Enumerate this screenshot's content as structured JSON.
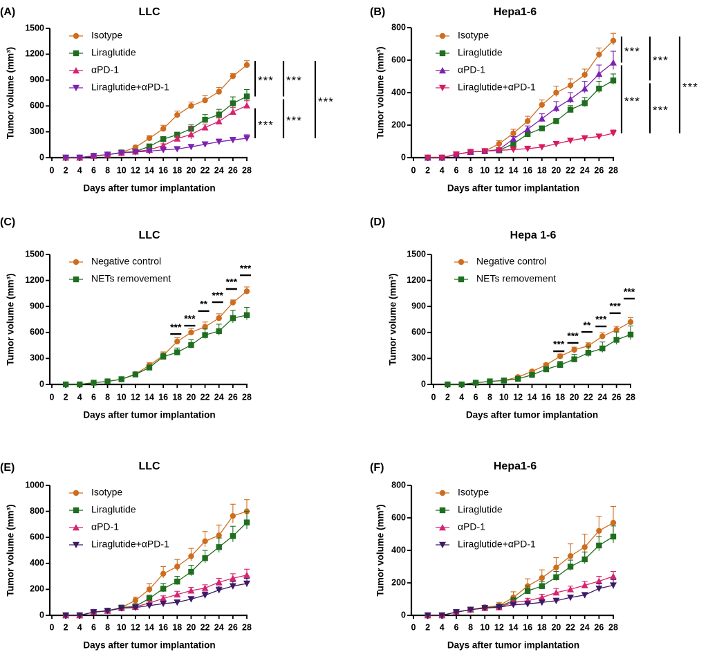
{
  "chart_data": [
    {
      "panel": "(A)",
      "title": "LLC",
      "type": "line",
      "xlabel": "Days after tumor implantation",
      "ylabel": "Tumor volume (mm³)",
      "xlim": [
        0,
        28
      ],
      "xticks": [
        0,
        2,
        4,
        6,
        8,
        10,
        12,
        14,
        16,
        18,
        20,
        22,
        24,
        26,
        28
      ],
      "ylim": [
        0,
        1500
      ],
      "yticks": [
        0,
        300,
        600,
        900,
        1200,
        1500
      ],
      "x": [
        2,
        4,
        6,
        8,
        10,
        12,
        14,
        16,
        18,
        20,
        22,
        24,
        26,
        28
      ],
      "legend_position": "top-left",
      "series": [
        {
          "name": "Isotype",
          "color": "#cf6d1f",
          "marker": "circle",
          "values": [
            0,
            0,
            20,
            35,
            60,
            120,
            225,
            335,
            495,
            600,
            665,
            765,
            945,
            1075
          ],
          "sem": [
            0,
            0,
            5,
            5,
            8,
            15,
            30,
            40,
            45,
            45,
            55,
            50,
            30,
            50
          ]
        },
        {
          "name": "Liraglutide",
          "color": "#1f6e1f",
          "marker": "square",
          "values": [
            0,
            0,
            20,
            35,
            60,
            70,
            130,
            215,
            265,
            335,
            440,
            500,
            630,
            710
          ],
          "sem": [
            0,
            0,
            5,
            5,
            8,
            10,
            15,
            20,
            30,
            45,
            60,
            60,
            75,
            80
          ]
        },
        {
          "name": "αPD-1",
          "color": "#d6246e",
          "marker": "triangle-up",
          "values": [
            0,
            0,
            20,
            35,
            55,
            70,
            90,
            140,
            220,
            270,
            350,
            420,
            530,
            605
          ],
          "sem": [
            0,
            0,
            5,
            5,
            8,
            10,
            15,
            20,
            30,
            90,
            40,
            40,
            50,
            55
          ]
        },
        {
          "name": "Liraglutide+αPD-1",
          "color": "#7b22b0",
          "marker": "triangle-down",
          "values": [
            0,
            0,
            20,
            35,
            55,
            65,
            75,
            90,
            100,
            125,
            155,
            185,
            205,
            225
          ],
          "sem": [
            0,
            0,
            5,
            5,
            8,
            10,
            12,
            15,
            15,
            20,
            20,
            30,
            30,
            40
          ]
        }
      ],
      "significance": [
        {
          "groups": [
            "Isotype",
            "Liraglutide"
          ],
          "label": "***"
        },
        {
          "groups": [
            "αPD-1",
            "Liraglutide+αPD-1"
          ],
          "label": "***"
        },
        {
          "groups": [
            "Isotype",
            "Liraglutide"
          ],
          "label": "***"
        },
        {
          "groups": [
            "Liraglutide",
            "Liraglutide+αPD-1"
          ],
          "label": "***"
        },
        {
          "groups": [
            "Isotype",
            "Liraglutide+αPD-1"
          ],
          "label": "***"
        }
      ]
    },
    {
      "panel": "(B)",
      "title": "Hepa1-6",
      "type": "line",
      "xlabel": "Days after tumor implantation",
      "ylabel": "Tumor volume (mm³)",
      "xlim": [
        0,
        28
      ],
      "xticks": [
        0,
        2,
        4,
        6,
        8,
        10,
        12,
        14,
        16,
        18,
        20,
        22,
        24,
        26,
        28
      ],
      "ylim": [
        0,
        800
      ],
      "yticks": [
        0,
        200,
        400,
        600,
        800
      ],
      "x": [
        2,
        4,
        6,
        8,
        10,
        12,
        14,
        16,
        18,
        20,
        22,
        24,
        26,
        28
      ],
      "legend_position": "top-left",
      "series": [
        {
          "name": "Isotype",
          "color": "#cf6d1f",
          "marker": "circle",
          "values": [
            0,
            0,
            20,
            35,
            40,
            85,
            150,
            225,
            325,
            400,
            445,
            510,
            635,
            720
          ],
          "sem": [
            0,
            0,
            5,
            5,
            5,
            20,
            25,
            30,
            30,
            40,
            40,
            35,
            40,
            45
          ]
        },
        {
          "name": "Liraglutide",
          "color": "#1f6e1f",
          "marker": "square",
          "values": [
            0,
            0,
            20,
            35,
            40,
            45,
            85,
            145,
            180,
            225,
            295,
            335,
            425,
            475
          ],
          "sem": [
            0,
            0,
            5,
            5,
            5,
            10,
            15,
            15,
            15,
            15,
            25,
            35,
            45,
            40
          ]
        },
        {
          "name": "αPD-1",
          "color": "#7b22b0",
          "marker": "triangle-up",
          "values": [
            0,
            0,
            20,
            35,
            40,
            50,
            115,
            175,
            240,
            305,
            360,
            425,
            515,
            585
          ],
          "sem": [
            0,
            0,
            5,
            5,
            5,
            10,
            15,
            20,
            30,
            40,
            40,
            45,
            55,
            70
          ]
        },
        {
          "name": "Liraglutide+αPD-1",
          "color": "#d81b60",
          "marker": "triangle-down",
          "values": [
            0,
            0,
            20,
            35,
            40,
            45,
            50,
            55,
            65,
            85,
            105,
            120,
            130,
            150
          ],
          "sem": [
            0,
            0,
            3,
            3,
            3,
            5,
            8,
            8,
            8,
            10,
            10,
            15,
            15,
            20
          ]
        }
      ],
      "significance": [
        {
          "groups": [
            "Isotype",
            "αPD-1"
          ],
          "label": "***"
        },
        {
          "groups": [
            "αPD-1",
            "Liraglutide+αPD-1"
          ],
          "label": "***"
        },
        {
          "groups": [
            "Isotype",
            "Liraglutide"
          ],
          "label": "***"
        },
        {
          "groups": [
            "Liraglutide",
            "Liraglutide+αPD-1"
          ],
          "label": "***"
        },
        {
          "groups": [
            "Isotype",
            "Liraglutide+αPD-1"
          ],
          "label": "***"
        }
      ]
    },
    {
      "panel": "(C)",
      "title": "LLC",
      "type": "line",
      "xlabel": "Days after tumor implantation",
      "ylabel": "Tumor volume (mm³)",
      "xlim": [
        0,
        28
      ],
      "xticks": [
        0,
        2,
        4,
        6,
        8,
        10,
        12,
        14,
        16,
        18,
        20,
        22,
        24,
        26,
        28
      ],
      "ylim": [
        0,
        1500
      ],
      "yticks": [
        0,
        300,
        600,
        900,
        1200,
        1500
      ],
      "x": [
        2,
        4,
        6,
        8,
        10,
        12,
        14,
        16,
        18,
        20,
        22,
        24,
        26,
        28
      ],
      "legend_position": "top-left",
      "series": [
        {
          "name": "Negative control",
          "color": "#cf6d1f",
          "marker": "circle",
          "values": [
            0,
            0,
            20,
            35,
            60,
            120,
            220,
            335,
            495,
            600,
            665,
            765,
            945,
            1075
          ],
          "sem": [
            0,
            0,
            5,
            5,
            8,
            15,
            30,
            40,
            45,
            45,
            55,
            50,
            30,
            50
          ]
        },
        {
          "name": "NETs removement",
          "color": "#1f6e1f",
          "marker": "square",
          "values": [
            0,
            0,
            20,
            35,
            60,
            115,
            195,
            320,
            370,
            455,
            570,
            615,
            765,
            800
          ],
          "sem": [
            0,
            0,
            5,
            5,
            8,
            10,
            20,
            40,
            50,
            60,
            70,
            80,
            90,
            90
          ]
        }
      ],
      "pointwise_significance": [
        {
          "day": 18,
          "label": "***"
        },
        {
          "day": 20,
          "label": "***"
        },
        {
          "day": 22,
          "label": "**"
        },
        {
          "day": 24,
          "label": "***"
        },
        {
          "day": 26,
          "label": "***"
        },
        {
          "day": 28,
          "label": "***"
        }
      ]
    },
    {
      "panel": "(D)",
      "title": "Hepa 1-6",
      "type": "line",
      "xlabel": "Days after tumor implantation",
      "ylabel": "Tumor volume (mm³)",
      "xlim": [
        0,
        28
      ],
      "xticks": [
        0,
        2,
        4,
        6,
        8,
        10,
        12,
        14,
        16,
        18,
        20,
        22,
        24,
        26,
        28
      ],
      "ylim": [
        0,
        1500
      ],
      "yticks": [
        0,
        300,
        600,
        900,
        1200,
        1500
      ],
      "x": [
        2,
        4,
        6,
        8,
        10,
        12,
        14,
        16,
        18,
        20,
        22,
        24,
        26,
        28
      ],
      "legend_position": "top-left",
      "series": [
        {
          "name": "Negative control",
          "color": "#cf6d1f",
          "marker": "circle",
          "values": [
            0,
            0,
            20,
            35,
            45,
            85,
            150,
            225,
            325,
            400,
            445,
            555,
            630,
            720
          ],
          "sem": [
            0,
            0,
            5,
            5,
            5,
            10,
            15,
            20,
            25,
            30,
            35,
            40,
            40,
            50
          ]
        },
        {
          "name": "NETs removement",
          "color": "#1f6e1f",
          "marker": "square",
          "values": [
            0,
            0,
            20,
            35,
            45,
            65,
            110,
            175,
            225,
            290,
            365,
            415,
            515,
            575
          ],
          "sem": [
            0,
            0,
            5,
            5,
            5,
            10,
            15,
            25,
            40,
            55,
            75,
            75,
            90,
            100
          ]
        }
      ],
      "pointwise_significance": [
        {
          "day": 18,
          "label": "***"
        },
        {
          "day": 20,
          "label": "***"
        },
        {
          "day": 22,
          "label": "**"
        },
        {
          "day": 24,
          "label": "***"
        },
        {
          "day": 26,
          "label": "***"
        },
        {
          "day": 28,
          "label": "***"
        }
      ]
    },
    {
      "panel": "(E)",
      "title": "LLC",
      "type": "line",
      "xlabel": "Days after tumor implantation",
      "ylabel": "Tumor volume (mm³)",
      "xlim": [
        0,
        28
      ],
      "xticks": [
        0,
        2,
        4,
        6,
        8,
        10,
        12,
        14,
        16,
        18,
        20,
        22,
        24,
        26,
        28
      ],
      "ylim": [
        0,
        1000
      ],
      "yticks": [
        0,
        200,
        400,
        600,
        800,
        1000
      ],
      "x": [
        2,
        4,
        6,
        8,
        10,
        12,
        14,
        16,
        18,
        20,
        22,
        24,
        26,
        28
      ],
      "legend_position": "top-left",
      "series": [
        {
          "name": "Isotype",
          "color": "#cf6d1f",
          "marker": "circle",
          "values": [
            0,
            0,
            25,
            35,
            60,
            115,
            200,
            320,
            375,
            455,
            570,
            615,
            765,
            800
          ],
          "sem": [
            0,
            0,
            5,
            5,
            8,
            25,
            45,
            55,
            55,
            60,
            75,
            80,
            90,
            90
          ]
        },
        {
          "name": "Liraglutide",
          "color": "#1f6e1f",
          "marker": "square",
          "values": [
            0,
            0,
            25,
            35,
            60,
            70,
            130,
            205,
            260,
            335,
            440,
            525,
            610,
            715
          ],
          "sem": [
            0,
            0,
            5,
            5,
            8,
            10,
            25,
            40,
            40,
            50,
            60,
            70,
            75,
            85
          ]
        },
        {
          "name": "αPD-1",
          "color": "#d6246e",
          "marker": "triangle-up",
          "values": [
            0,
            0,
            25,
            35,
            55,
            65,
            95,
            130,
            160,
            190,
            210,
            255,
            285,
            310
          ],
          "sem": [
            0,
            0,
            5,
            5,
            5,
            10,
            15,
            20,
            25,
            25,
            25,
            30,
            35,
            45
          ]
        },
        {
          "name": "Liraglutide+αPD-1",
          "color": "#3d1a66",
          "marker": "triangle-down",
          "values": [
            0,
            0,
            25,
            35,
            55,
            60,
            75,
            90,
            100,
            125,
            155,
            195,
            225,
            245
          ],
          "sem": [
            0,
            0,
            5,
            5,
            5,
            8,
            10,
            15,
            15,
            15,
            25,
            30,
            35,
            40
          ]
        }
      ]
    },
    {
      "panel": "(F)",
      "title": "Hepa1-6",
      "type": "line",
      "xlabel": "Days after tumor implantation",
      "ylabel": "Tumor volume (mm³)",
      "xlim": [
        0,
        28
      ],
      "xticks": [
        0,
        2,
        4,
        6,
        8,
        10,
        12,
        14,
        16,
        18,
        20,
        22,
        24,
        26,
        28
      ],
      "ylim": [
        0,
        800
      ],
      "yticks": [
        0,
        200,
        400,
        600,
        800
      ],
      "x": [
        2,
        4,
        6,
        8,
        10,
        12,
        14,
        16,
        18,
        20,
        22,
        24,
        26,
        28
      ],
      "legend_position": "top-left",
      "series": [
        {
          "name": "Isotype",
          "color": "#cf6d1f",
          "marker": "circle",
          "values": [
            0,
            0,
            20,
            35,
            50,
            60,
            110,
            180,
            230,
            295,
            365,
            420,
            520,
            570
          ],
          "sem": [
            0,
            0,
            5,
            5,
            10,
            20,
            35,
            45,
            50,
            60,
            75,
            80,
            90,
            100
          ]
        },
        {
          "name": "Liraglutide",
          "color": "#1f6e1f",
          "marker": "square",
          "values": [
            0,
            0,
            20,
            35,
            45,
            55,
            90,
            150,
            180,
            235,
            300,
            345,
            430,
            485
          ],
          "sem": [
            0,
            0,
            5,
            5,
            8,
            10,
            20,
            30,
            30,
            35,
            40,
            45,
            55,
            65
          ]
        },
        {
          "name": "αPD-1",
          "color": "#d6246e",
          "marker": "triangle-up",
          "values": [
            0,
            0,
            20,
            35,
            45,
            50,
            80,
            90,
            110,
            140,
            160,
            185,
            210,
            240
          ],
          "sem": [
            0,
            0,
            5,
            5,
            5,
            8,
            10,
            15,
            20,
            25,
            20,
            25,
            30,
            30
          ]
        },
        {
          "name": "Liraglutide+αPD-1",
          "color": "#3d1a66",
          "marker": "triangle-down",
          "values": [
            0,
            0,
            20,
            35,
            45,
            50,
            65,
            70,
            80,
            90,
            110,
            125,
            165,
            185
          ],
          "sem": [
            0,
            0,
            3,
            3,
            5,
            5,
            8,
            10,
            10,
            10,
            10,
            15,
            30,
            35
          ]
        }
      ]
    }
  ]
}
